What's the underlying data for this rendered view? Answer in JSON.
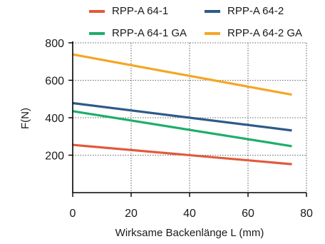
{
  "chart_data": {
    "type": "line",
    "title": "",
    "xlabel": "Wirksame Backenlänge L (mm)",
    "ylabel": "F(N)",
    "xlim": [
      0,
      80
    ],
    "ylim": [
      0,
      800
    ],
    "xticks": [
      0,
      20,
      40,
      60,
      80
    ],
    "yticks": [
      200,
      400,
      600,
      800
    ],
    "grid": true,
    "grid_style": "dotted",
    "legend_position": "top",
    "series": [
      {
        "name": "RPP-A 64-1",
        "color": "#e05a3c",
        "x": [
          0,
          75
        ],
        "y": [
          255,
          152
        ]
      },
      {
        "name": "RPP-A 64-2",
        "color": "#2f5a87",
        "x": [
          0,
          75
        ],
        "y": [
          478,
          332
        ]
      },
      {
        "name": "RPP-A 64-1 GA",
        "color": "#1fae6a",
        "x": [
          0,
          75
        ],
        "y": [
          435,
          248
        ]
      },
      {
        "name": "RPP-A 64-2 GA",
        "color": "#f5a623",
        "x": [
          0,
          75
        ],
        "y": [
          738,
          523
        ]
      }
    ]
  }
}
